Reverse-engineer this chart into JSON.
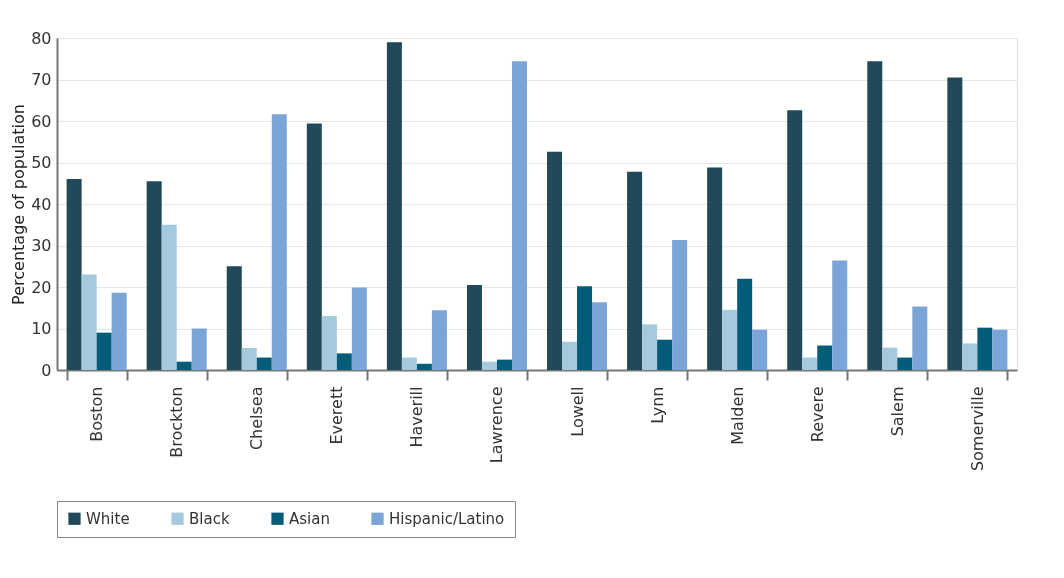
{
  "chart_data": {
    "type": "bar",
    "ylabel": "Percentage of population",
    "categories": [
      "Boston",
      "Brockton",
      "Chelsea",
      "Everett",
      "Haverill",
      "Lawrence",
      "Lowell",
      "Lynn",
      "Malden",
      "Revere",
      "Salem",
      "Somerville"
    ],
    "series": [
      {
        "name": "White",
        "color": "#21495a",
        "values": [
          46,
          45.5,
          25,
          59.4,
          79,
          20.5,
          52.6,
          47.8,
          48.8,
          62.6,
          74.4,
          70.5
        ]
      },
      {
        "name": "Black",
        "color": "#a5cadd",
        "values": [
          23,
          35,
          5.3,
          13,
          3,
          2,
          6.8,
          11,
          14.5,
          3,
          5.4,
          6.4
        ]
      },
      {
        "name": "Asian",
        "color": "#045d78",
        "values": [
          9,
          2,
          3,
          4,
          1.5,
          2.5,
          20.2,
          7.3,
          22,
          5.9,
          3,
          10.2
        ]
      },
      {
        "name": "Hispanic/Latino",
        "color": "#7aa5d6",
        "values": [
          18.6,
          10,
          61.6,
          19.9,
          14.4,
          74.4,
          16.3,
          31.3,
          9.7,
          26.4,
          15.3,
          9.7
        ]
      }
    ],
    "ylim": [
      0,
      80
    ],
    "yticks": [
      0,
      10,
      20,
      30,
      40,
      50,
      60,
      70,
      80
    ],
    "grid": "y",
    "legend": "bottom"
  }
}
